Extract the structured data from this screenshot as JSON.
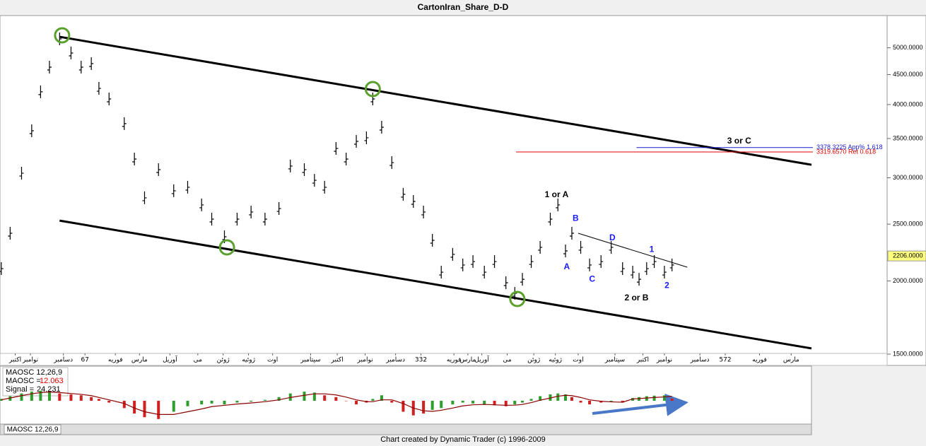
{
  "window": {
    "title": "CartonIran_Share_D-D",
    "footer": "Chart created by Dynamic Trader  (c) 1996-2009",
    "tab": "MAOSC 12,26,9"
  },
  "chart_data": [
    {
      "type": "ohlc",
      "color": "#000000",
      "log_scale": true,
      "x": [
        1,
        8,
        17,
        25,
        32,
        39,
        47,
        56,
        64,
        72,
        78,
        86,
        98,
        106,
        114,
        125,
        137,
        148,
        159,
        167,
        177,
        187,
        198,
        209,
        220,
        229,
        240,
        248,
        256,
        265,
        273,
        281,
        289,
        294,
        301,
        309,
        318,
        326,
        334,
        341,
        348,
        357,
        365,
        373,
        382,
        390,
        399,
        406,
        412,
        419,
        426,
        434,
        440,
        446,
        451,
        458,
        465,
        474,
        482,
        491,
        499,
        504,
        510,
        516,
        524,
        530
      ],
      "values": [
        2099,
        2412,
        3054,
        3608,
        4205,
        4633,
        5178,
        4898,
        4633,
        4698,
        4262,
        4089,
        3711,
        3229,
        2772,
        3097,
        2850,
        2890,
        2696,
        2550,
        2379,
        2550,
        2622,
        2550,
        2658,
        3141,
        3097,
        2970,
        2890,
        3366,
        3229,
        3461,
        3510,
        4089,
        3659,
        3184,
        2811,
        2733,
        2622,
        2346,
        2070,
        2220,
        2129,
        2158,
        2070,
        2158,
        1986,
        1905,
        2013,
        2158,
        2282,
        2550,
        2696,
        2250,
        2412,
        2282,
        2129,
        2158,
        2282,
        2099,
        2070,
        2013,
        2099,
        2158,
        2070,
        2129
      ],
      "xlim": [
        0,
        640
      ],
      "xticks": [
        {
          "value": 12,
          "label": "اکتبر"
        },
        {
          "value": 24,
          "label": "نوامبر"
        },
        {
          "value": 50,
          "label": "دسامبر"
        },
        67,
        {
          "value": 91,
          "label": "فوریه"
        },
        {
          "value": 110,
          "label": "مارس"
        },
        {
          "value": 134,
          "label": "آوریل"
        },
        {
          "value": 156,
          "label": "می"
        },
        {
          "value": 176,
          "label": "ژوئن"
        },
        {
          "value": 196,
          "label": "ژوئیه"
        },
        {
          "value": 215,
          "label": "اوت"
        },
        {
          "value": 245,
          "label": "سپتامبر"
        },
        {
          "value": 266,
          "label": "اکتبر"
        },
        {
          "value": 288,
          "label": "نوامبر"
        },
        {
          "value": 312,
          "label": "دسامبر"
        },
        332,
        {
          "value": 358,
          "label": "فوریه"
        },
        {
          "value": 369,
          "label": "مارس"
        },
        {
          "value": 380,
          "label": "آوریل"
        },
        {
          "value": 400,
          "label": "می"
        },
        {
          "value": 421,
          "label": "ژوئن"
        },
        {
          "value": 438,
          "label": "ژوئیه"
        },
        {
          "value": 456,
          "label": "اوت"
        },
        {
          "value": 485,
          "label": "سپتامبر"
        },
        {
          "value": 507,
          "label": "اکتبر"
        },
        {
          "value": 524,
          "label": "نوامبر"
        },
        {
          "value": 552,
          "label": "دسامبر"
        },
        572,
        {
          "value": 599,
          "label": "فوریه"
        },
        {
          "value": 624,
          "label": "مارس"
        }
      ],
      "ylim": [
        1500,
        5550
      ],
      "yticks": [
        {
          "value": 1500,
          "label": "1500.0000"
        },
        {
          "value": 2000,
          "label": "2000.0000"
        },
        {
          "value": 2500,
          "label": "2500.0000"
        },
        {
          "value": 3000,
          "label": "3000.0000"
        },
        {
          "value": 3500,
          "label": "3500.0000"
        },
        {
          "value": 4000,
          "label": "4000.0000"
        },
        {
          "value": 4500,
          "label": "4500.0000"
        },
        {
          "value": 5000,
          "label": "5000.0000"
        }
      ],
      "last_price": {
        "value": 2206,
        "label": "2206.0000"
      },
      "channel_lines": [
        {
          "x": [
            47,
            640
          ],
          "y": [
            5220,
            3157
          ]
        },
        {
          "x": [
            47,
            640
          ],
          "y": [
            2535,
            1534
          ]
        }
      ],
      "trend_line": {
        "x": [
          456,
          542
        ],
        "y": [
          2412,
          2111
        ]
      },
      "pivots": [
        {
          "x": 49,
          "y": 5250
        },
        {
          "x": 294,
          "y": 4251
        },
        {
          "x": 179,
          "y": 2282
        },
        {
          "x": 408,
          "y": 1863
        }
      ],
      "pivot_color": "#5aa02c",
      "fib_levels": [
        {
          "value": 3378.3225,
          "label": "3378.3225 App% 1.618",
          "x_start": 502,
          "color": "#1a1acc"
        },
        {
          "value": 3319.657,
          "label": "3319.6570 Ret 0.618",
          "x_start": 407,
          "color": "#e00000"
        }
      ],
      "annotations": [
        {
          "text": "1 or A",
          "x": 439,
          "y": 2802,
          "color": "#000000"
        },
        {
          "text": "B",
          "x": 454,
          "y": 2556,
          "color": "#1a1aff"
        },
        {
          "text": "A",
          "x": 447,
          "y": 2113,
          "color": "#1a1aff"
        },
        {
          "text": "C",
          "x": 467,
          "y": 2011,
          "color": "#1a1aff"
        },
        {
          "text": "D",
          "x": 483,
          "y": 2366,
          "color": "#1a1aff"
        },
        {
          "text": "1",
          "x": 514,
          "y": 2261,
          "color": "#1a1aff"
        },
        {
          "text": "2",
          "x": 526,
          "y": 1961,
          "color": "#1a1aff"
        },
        {
          "text": "2 or B",
          "x": 502,
          "y": 1868,
          "color": "#000000"
        },
        {
          "text": "3 or C",
          "x": 583,
          "y": 3463,
          "color": "#000000"
        }
      ]
    },
    {
      "type": "bar",
      "title": "MAOSC 12,26,9",
      "up_color": "#2e9e2e",
      "down_color": "#d02020",
      "x": [
        1,
        8,
        17,
        25,
        32,
        39,
        47,
        56,
        64,
        72,
        78,
        86,
        98,
        106,
        114,
        125,
        137,
        148,
        159,
        167,
        177,
        187,
        198,
        209,
        220,
        229,
        240,
        248,
        256,
        265,
        273,
        281,
        289,
        294,
        301,
        309,
        318,
        326,
        334,
        341,
        348,
        357,
        365,
        373,
        382,
        390,
        399,
        406,
        412,
        419,
        426,
        434,
        440,
        446,
        451,
        458,
        465,
        474,
        482,
        491,
        499,
        504,
        510,
        516,
        524,
        530
      ],
      "xlim": [
        0,
        640
      ],
      "ylim": [
        -120,
        120
      ],
      "series": [
        {
          "name": "MAOSC =",
          "color": "#e00000",
          "values": [
            10,
            25,
            40,
            50,
            55,
            50,
            40,
            35,
            30,
            20,
            10,
            -10,
            -40,
            -70,
            -90,
            -100,
            -60,
            -30,
            -20,
            -15,
            -20,
            -10,
            -5,
            5,
            20,
            40,
            50,
            45,
            30,
            20,
            0,
            -20,
            -10,
            10,
            30,
            -10,
            -60,
            -80,
            -70,
            -50,
            -40,
            -20,
            -10,
            -15,
            -20,
            -25,
            -30,
            -20,
            -10,
            10,
            25,
            35,
            40,
            35,
            20,
            -10,
            -20,
            -10,
            -5,
            -10,
            15,
            20,
            25,
            28,
            30,
            12.063
          ]
        },
        {
          "name": "Signal =",
          "color": "#8b0000",
          "values": [
            5,
            15,
            28,
            38,
            45,
            48,
            45,
            40,
            35,
            28,
            18,
            5,
            -15,
            -40,
            -60,
            -75,
            -75,
            -60,
            -45,
            -32,
            -25,
            -18,
            -12,
            -5,
            5,
            18,
            30,
            38,
            38,
            32,
            20,
            5,
            -5,
            -5,
            5,
            5,
            -15,
            -40,
            -55,
            -58,
            -52,
            -40,
            -28,
            -22,
            -20,
            -22,
            -25,
            -24,
            -20,
            -10,
            3,
            15,
            25,
            30,
            28,
            18,
            5,
            -3,
            -6,
            -8,
            10,
            12,
            15,
            18,
            21,
            24.231
          ]
        }
      ]
    }
  ]
}
